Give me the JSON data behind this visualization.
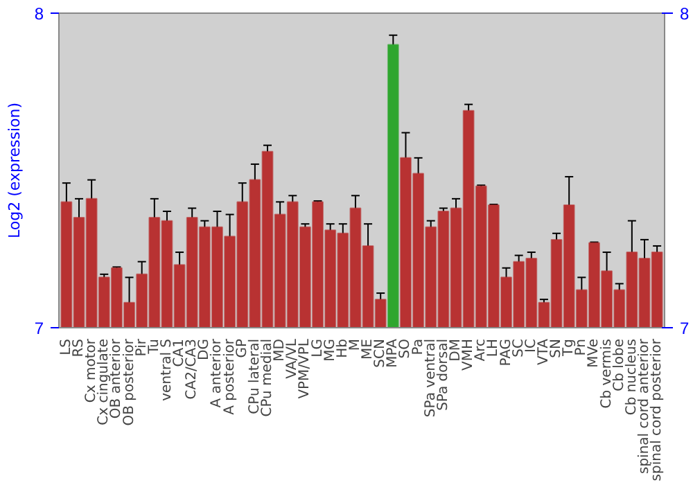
{
  "chart_data": {
    "type": "bar",
    "ylabel": "Log2 (expression)",
    "categories": [
      "LS",
      "RS",
      "Cx motor",
      "Cx cingulate",
      "OB anterior",
      "OB posterior",
      "Pir",
      "Tu",
      "ventral S",
      "CA1",
      "CA2/CA3",
      "DG",
      "A anterior",
      "A posterior",
      "GP",
      "CPu lateral",
      "CPu medial",
      "MD",
      "VA/VL",
      "VPM/VPL",
      "LG",
      "MG",
      "Hb",
      "M",
      "ME",
      "SCN",
      "MPA",
      "SO",
      "Pa",
      "SPa ventral",
      "SPa dorsal",
      "DM",
      "VMH",
      "Arc",
      "LH",
      "PAG",
      "SC",
      "IC",
      "VTA",
      "SN",
      "Tg",
      "Pn",
      "MVe",
      "Cb vermis",
      "Cb lobe",
      "Cb nucleus",
      "spinal cord anterior",
      "spinal cord posterior"
    ],
    "values": [
      7.4,
      7.35,
      7.41,
      7.16,
      7.19,
      7.08,
      7.17,
      7.35,
      7.34,
      7.2,
      7.35,
      7.32,
      7.32,
      7.29,
      7.4,
      7.47,
      7.56,
      7.36,
      7.4,
      7.32,
      7.4,
      7.31,
      7.3,
      7.38,
      7.26,
      7.09,
      7.9,
      7.54,
      7.49,
      7.32,
      7.37,
      7.38,
      7.69,
      7.45,
      7.39,
      7.16,
      7.21,
      7.22,
      7.08,
      7.28,
      7.39,
      7.12,
      7.27,
      7.18,
      7.12,
      7.24,
      7.22,
      7.24
    ],
    "errors": [
      0.06,
      0.06,
      0.06,
      0.01,
      0.003,
      0.08,
      0.04,
      0.06,
      0.03,
      0.04,
      0.03,
      0.02,
      0.05,
      0.07,
      0.06,
      0.05,
      0.02,
      0.04,
      0.02,
      0.01,
      0.003,
      0.02,
      0.03,
      0.04,
      0.07,
      0.02,
      0.03,
      0.08,
      0.05,
      0.02,
      0.01,
      0.03,
      0.02,
      0.003,
      0.002,
      0.03,
      0.02,
      0.02,
      0.01,
      0.02,
      0.09,
      0.04,
      0.002,
      0.06,
      0.02,
      0.1,
      0.06,
      0.02
    ],
    "colors": [
      "#b83232",
      "#b83232",
      "#b83232",
      "#b83232",
      "#b83232",
      "#b83232",
      "#b83232",
      "#b83232",
      "#b83232",
      "#b83232",
      "#b83232",
      "#b83232",
      "#b83232",
      "#b83232",
      "#b83232",
      "#b83232",
      "#b83232",
      "#b83232",
      "#b83232",
      "#b83232",
      "#b83232",
      "#b83232",
      "#b83232",
      "#b83232",
      "#b83232",
      "#b83232",
      "#2ea62e",
      "#b83232",
      "#b83232",
      "#b83232",
      "#b83232",
      "#b83232",
      "#b83232",
      "#b83232",
      "#b83232",
      "#b83232",
      "#b83232",
      "#b83232",
      "#b83232",
      "#b83232",
      "#b83232",
      "#b83232",
      "#b83232",
      "#b83232",
      "#b83232",
      "#b83232",
      "#b83232",
      "#b83232"
    ],
    "ylim": [
      7,
      8
    ],
    "yticks": [
      7,
      8
    ],
    "y2lim": [
      7,
      8
    ],
    "y2ticks": [
      7,
      8
    ],
    "grid": false
  }
}
